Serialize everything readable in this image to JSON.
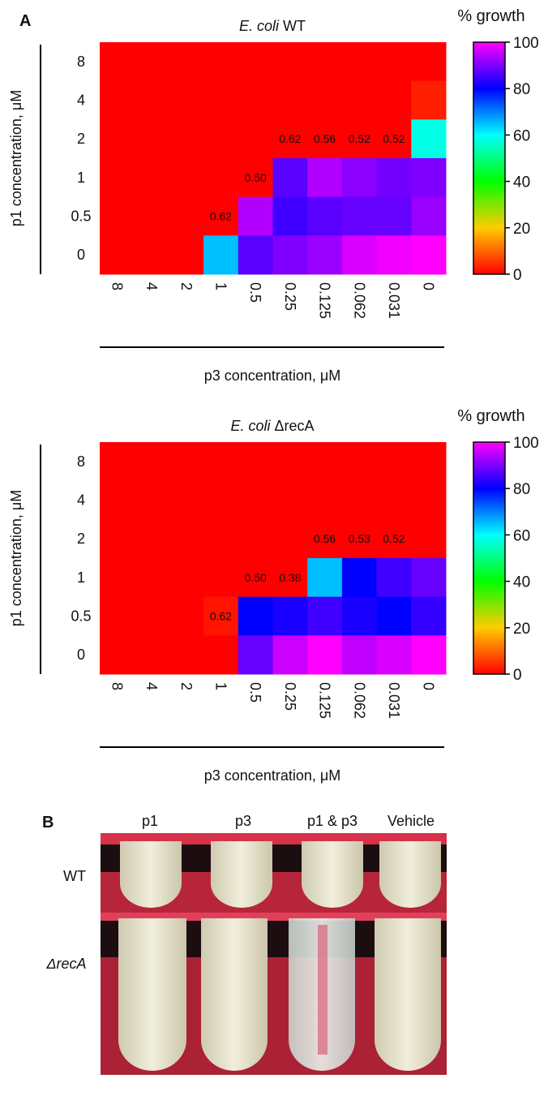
{
  "panel_a_label": "A",
  "chart_data": [
    {
      "type": "heatmap",
      "title": {
        "italic": "E. coli",
        "plain": "WT"
      },
      "x_label": "p3 concentration, μM",
      "y_label": "p1 concentration, μM",
      "xcategories": [
        "8",
        "4",
        "2",
        "1",
        "0.5",
        "0.25",
        "0.125",
        "0.062",
        "0.031",
        "0"
      ],
      "ycategories": [
        "8",
        "4",
        "2",
        "1",
        "0.5",
        "0"
      ],
      "values": [
        [
          0,
          0,
          0,
          0,
          0,
          0,
          0,
          0,
          0,
          0
        ],
        [
          0,
          0,
          0,
          0,
          0,
          0,
          0,
          0,
          0,
          3
        ],
        [
          0,
          0,
          0,
          0,
          0,
          0,
          0,
          0,
          0,
          58
        ],
        [
          0,
          0,
          0,
          0,
          0,
          87,
          94,
          91,
          89,
          90
        ],
        [
          0,
          0,
          0,
          0,
          94,
          85,
          87,
          88,
          88,
          92
        ],
        [
          0,
          0,
          0,
          65,
          87,
          90,
          92,
          97,
          99,
          100
        ]
      ],
      "annotations": [
        {
          "label": "0.62",
          "x": "1",
          "y": "0.5"
        },
        {
          "label": "0.50",
          "x": "0.5",
          "y": "1"
        },
        {
          "label": "0.62",
          "x": "0.25",
          "y": "2"
        },
        {
          "label": "0.56",
          "x": "0.125",
          "y": "2"
        },
        {
          "label": "0.52",
          "x": "0.062",
          "y": "2"
        },
        {
          "label": "0.52",
          "x": "0.031",
          "y": "2"
        }
      ],
      "colorbar_label": "% growth",
      "clim": [
        0,
        100
      ],
      "cticks": [
        0,
        20,
        40,
        60,
        80,
        100
      ],
      "colors": [
        "#ff0000",
        "#ffcc00",
        "#00ff00",
        "#00ffff",
        "#0000ff",
        "#ff00ff"
      ]
    },
    {
      "type": "heatmap",
      "title": {
        "italic": "E. coli",
        "plain": "ΔrecA"
      },
      "x_label": "p3 concentration, μM",
      "y_label": "p1 concentration, μM",
      "xcategories": [
        "8",
        "4",
        "2",
        "1",
        "0.5",
        "0.25",
        "0.125",
        "0.062",
        "0.031",
        "0"
      ],
      "ycategories": [
        "8",
        "4",
        "2",
        "1",
        "0.5",
        "0"
      ],
      "values": [
        [
          0,
          0,
          0,
          0,
          0,
          0,
          0,
          0,
          0,
          0
        ],
        [
          0,
          0,
          0,
          0,
          0,
          0,
          0,
          0,
          0,
          0
        ],
        [
          0,
          0,
          0,
          0,
          0,
          0,
          0,
          0,
          0,
          0
        ],
        [
          0,
          0,
          0,
          0,
          0,
          0,
          65,
          80,
          85,
          88
        ],
        [
          0,
          0,
          0,
          2,
          80,
          82,
          85,
          82,
          80,
          84
        ],
        [
          0,
          0,
          0,
          0,
          88,
          96,
          100,
          95,
          97,
          100
        ]
      ],
      "annotations": [
        {
          "label": "0.62",
          "x": "1",
          "y": "0.5"
        },
        {
          "label": "0.50",
          "x": "0.5",
          "y": "1"
        },
        {
          "label": "0.38",
          "x": "0.25",
          "y": "1"
        },
        {
          "label": "0.56",
          "x": "0.125",
          "y": "2"
        },
        {
          "label": "0.53",
          "x": "0.062",
          "y": "2"
        },
        {
          "label": "0.52",
          "x": "0.031",
          "y": "2"
        }
      ],
      "colorbar_label": "% growth",
      "clim": [
        0,
        100
      ],
      "cticks": [
        0,
        20,
        40,
        60,
        80,
        100
      ],
      "colors": [
        "#ff0000",
        "#ffcc00",
        "#00ff00",
        "#00ffff",
        "#0000ff",
        "#ff00ff"
      ]
    }
  ],
  "photo": {
    "label": "B",
    "columns": [
      "p1",
      "p3",
      "p1 & p3",
      "Vehicle"
    ],
    "rows": [
      "WT",
      "ΔrecA"
    ]
  }
}
